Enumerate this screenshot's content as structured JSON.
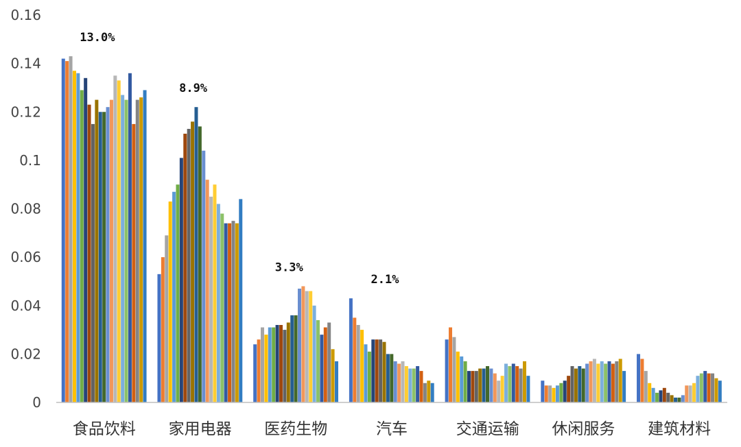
{
  "chart_data": {
    "type": "bar",
    "title": "",
    "xlabel": "",
    "ylabel": "",
    "ylim": [
      0,
      0.16
    ],
    "yticks": [
      "0",
      "0.02",
      "0.04",
      "0.06",
      "0.08",
      "0.1",
      "0.12",
      "0.14",
      "0.16"
    ],
    "grid": false,
    "legend": "none",
    "categories": [
      "食品饮料",
      "家用电器",
      "医药生物",
      "汽车",
      "交通运输",
      "休闲服务",
      "建筑材料"
    ],
    "bar_colors": [
      "#4472c4",
      "#ed7d31",
      "#a5a5a5",
      "#ffc000",
      "#5b9bd5",
      "#70ad47",
      "#264478",
      "#9e480e",
      "#636363",
      "#997300",
      "#255e91",
      "#43682b",
      "#698ed0",
      "#f1975a",
      "#b7b7b7",
      "#ffcd33",
      "#7cafdd",
      "#8cc168",
      "#335aa1",
      "#d26012",
      "#848484",
      "#cc9a00",
      "#327dc2"
    ],
    "groups": [
      {
        "category": "食品饮料",
        "annotation": "13.0%",
        "values": [
          0.142,
          0.141,
          0.143,
          0.137,
          0.136,
          0.129,
          0.134,
          0.123,
          0.115,
          0.125,
          0.12,
          0.12,
          0.122,
          0.125,
          0.135,
          0.133,
          0.127,
          0.125,
          0.136,
          0.115,
          0.125,
          0.126,
          0.129
        ]
      },
      {
        "category": "家用电器",
        "annotation": "8.9%",
        "values": [
          0.053,
          0.06,
          0.069,
          0.083,
          0.087,
          0.09,
          0.101,
          0.111,
          0.113,
          0.116,
          0.122,
          0.114,
          0.104,
          0.092,
          0.085,
          0.09,
          0.082,
          0.078,
          0.074,
          0.074,
          0.075,
          0.074,
          0.084
        ]
      },
      {
        "category": "医药生物",
        "annotation": "3.3%",
        "values": [
          0.024,
          0.026,
          0.031,
          0.028,
          0.031,
          0.031,
          0.032,
          0.032,
          0.03,
          0.033,
          0.036,
          0.036,
          0.047,
          0.048,
          0.046,
          0.046,
          0.04,
          0.034,
          0.028,
          0.031,
          0.033,
          0.022,
          0.017
        ]
      },
      {
        "category": "汽车",
        "annotation": "2.1%",
        "values": [
          0.043,
          0.035,
          0.032,
          0.03,
          0.024,
          0.021,
          0.026,
          0.026,
          0.026,
          0.025,
          0.02,
          0.02,
          0.017,
          0.016,
          0.017,
          0.015,
          0.014,
          0.014,
          0.015,
          0.013,
          0.008,
          0.009,
          0.008
        ]
      },
      {
        "category": "交通运输",
        "annotation": "",
        "values": [
          0.026,
          0.031,
          0.027,
          0.021,
          0.019,
          0.017,
          0.013,
          0.013,
          0.013,
          0.014,
          0.014,
          0.015,
          0.014,
          0.012,
          0.009,
          0.011,
          0.016,
          0.015,
          0.016,
          0.015,
          0.014,
          0.017,
          0.011
        ]
      },
      {
        "category": "休闲服务",
        "annotation": "",
        "values": [
          0.009,
          0.007,
          0.007,
          0.006,
          0.007,
          0.008,
          0.009,
          0.011,
          0.015,
          0.014,
          0.015,
          0.014,
          0.016,
          0.017,
          0.018,
          0.016,
          0.017,
          0.016,
          0.017,
          0.016,
          0.017,
          0.018,
          0.013
        ]
      },
      {
        "category": "建筑材料",
        "annotation": "",
        "values": [
          0.02,
          0.018,
          0.013,
          0.008,
          0.006,
          0.004,
          0.005,
          0.006,
          0.004,
          0.003,
          0.002,
          0.002,
          0.003,
          0.007,
          0.007,
          0.008,
          0.011,
          0.012,
          0.013,
          0.012,
          0.012,
          0.01,
          0.009
        ]
      }
    ]
  }
}
